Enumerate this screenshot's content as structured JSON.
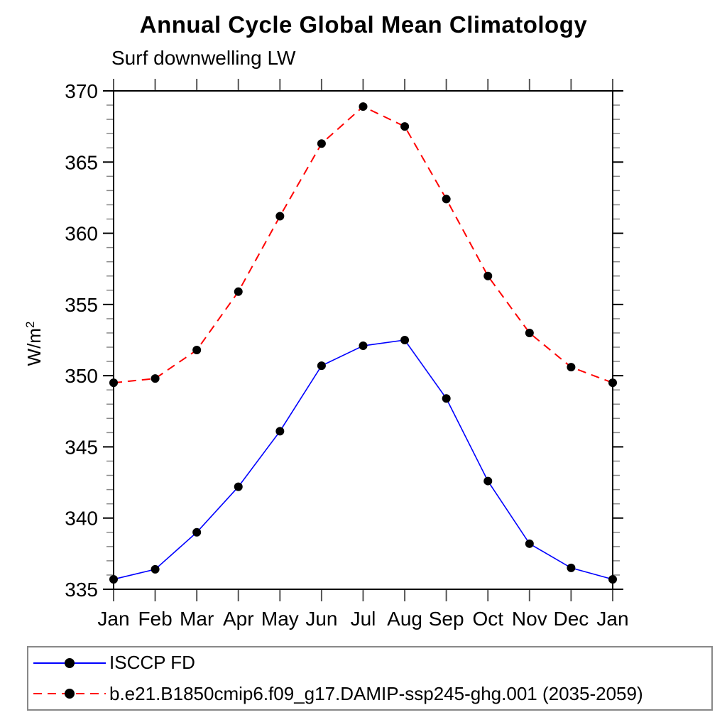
{
  "chart_data": {
    "type": "line",
    "title": "Annual Cycle Global Mean Climatology",
    "subtitle": "Surf downwelling LW",
    "ylabel": "W/m²",
    "ylabel_parts": {
      "base": "W/m",
      "exp": "2"
    },
    "categories": [
      "Jan",
      "Feb",
      "Mar",
      "Apr",
      "May",
      "Jun",
      "Jul",
      "Aug",
      "Sep",
      "Oct",
      "Nov",
      "Dec",
      "Jan"
    ],
    "ylim": [
      335,
      370
    ],
    "yticks_major": [
      335,
      340,
      345,
      350,
      355,
      360,
      365,
      370
    ],
    "ytick_minor_step": 1,
    "grid": false,
    "legend_position": "bottom",
    "axis_color": "#000000",
    "minor_tick_color": "#888888",
    "month_tick_color": "#555555",
    "series": [
      {
        "name": "ISCCP FD",
        "color": "#0000ff",
        "line_style": "solid",
        "marker": "filled-circle",
        "marker_color": "#000000",
        "values": [
          335.7,
          336.4,
          339.0,
          342.2,
          346.1,
          350.7,
          352.1,
          352.5,
          348.4,
          342.6,
          338.2,
          336.5,
          335.7
        ]
      },
      {
        "name": "b.e21.B1850cmip6.f09_g17.DAMIP-ssp245-ghg.001 (2035-2059)",
        "color": "#ff0000",
        "line_style": "dashed",
        "marker": "filled-circle",
        "marker_color": "#000000",
        "values": [
          349.5,
          349.8,
          351.8,
          355.9,
          361.2,
          366.3,
          368.9,
          367.5,
          362.4,
          357.0,
          353.0,
          350.6,
          349.5
        ]
      }
    ]
  }
}
